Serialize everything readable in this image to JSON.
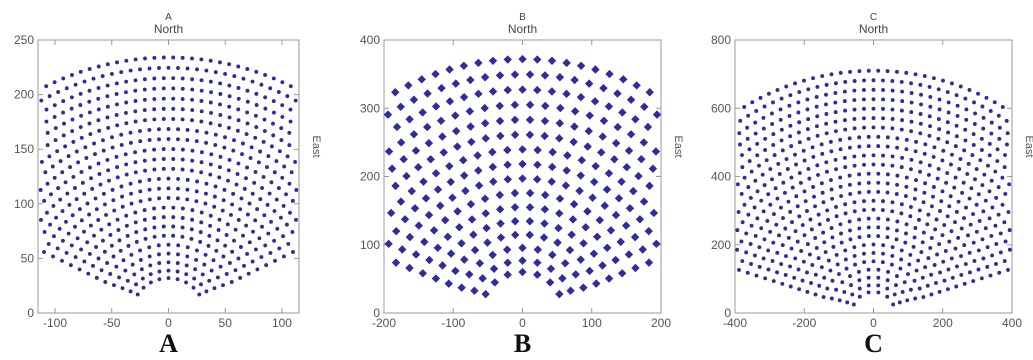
{
  "chart_data": [
    {
      "type": "scatter",
      "panel_label": "A",
      "title": "A",
      "subtitle": "North",
      "ylabel": "East",
      "xlim": [
        -115,
        115
      ],
      "ylim": [
        0,
        250
      ],
      "xticks": [
        -100,
        -50,
        0,
        50,
        100
      ],
      "yticks": [
        0,
        50,
        100,
        150,
        200,
        250
      ],
      "point_color": "#2e2e9a",
      "field": {
        "inner_radius": 32,
        "outer_radius": 234,
        "max_angle_deg": 63,
        "row_count": 24,
        "marker": "small"
      },
      "grid": false
    },
    {
      "type": "scatter",
      "panel_label": "B",
      "title": "B",
      "subtitle": "North",
      "ylabel": "East",
      "xlim": [
        -200,
        200
      ],
      "ylim": [
        0,
        400
      ],
      "xticks": [
        -200,
        -100,
        0,
        100,
        200
      ],
      "yticks": [
        0,
        100,
        200,
        300,
        400
      ],
      "point_color": "#2e2e9a",
      "field": {
        "inner_radius": 60,
        "outer_radius": 372,
        "max_angle_deg": 68,
        "row_count": 16,
        "marker": "large"
      },
      "grid": false
    },
    {
      "type": "scatter",
      "panel_label": "C",
      "title": "C",
      "subtitle": "North",
      "ylabel": "East",
      "xlim": [
        -400,
        400
      ],
      "ylim": [
        0,
        800
      ],
      "xticks": [
        -400,
        -200,
        0,
        200,
        400
      ],
      "yticks": [
        0,
        200,
        400,
        600,
        800
      ],
      "point_color": "#2e2e9a",
      "field": {
        "inner_radius": 62,
        "outer_radius": 710,
        "max_angle_deg": 72,
        "row_count": 26,
        "marker": "small"
      },
      "grid": false
    }
  ]
}
